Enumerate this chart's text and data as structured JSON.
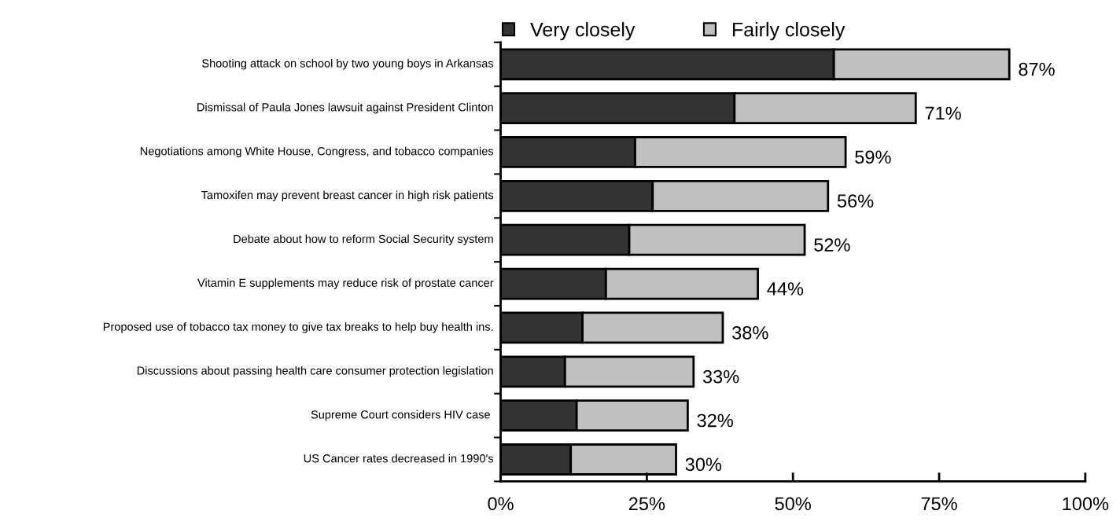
{
  "chart_data": {
    "type": "bar",
    "orientation": "horizontal",
    "stacked": true,
    "categories": [
      "Shooting attack on school by two young boys in Arkansas",
      "Dismissal of Paula Jones lawsuit against President Clinton",
      "Negotiations among White House, Congress, and tobacco companies",
      "Tamoxifen may prevent breast cancer in high risk patients",
      "Debate about how to reform Social Security system",
      "Vitamin E supplements may reduce risk of prostate cancer",
      "Proposed use of tobacco tax money to give tax breaks to help buy health ins.",
      "Discussions about passing health care consumer protection legislation",
      "Supreme Court considers HIV case ",
      "US Cancer rates decreased in 1990's"
    ],
    "series": [
      {
        "name": "Very closely",
        "color": "#333333",
        "values": [
          57,
          40,
          23,
          26,
          22,
          18,
          14,
          11,
          13,
          12
        ]
      },
      {
        "name": "Fairly closely",
        "color": "#c0c0c0",
        "values": [
          30,
          31,
          36,
          30,
          30,
          26,
          24,
          22,
          19,
          18
        ]
      }
    ],
    "totals": [
      "87%",
      "71%",
      "59%",
      "56%",
      "52%",
      "44%",
      "38%",
      "33%",
      "32%",
      "30%"
    ],
    "xlim": [
      0,
      100
    ],
    "xticks": [
      {
        "value": 0,
        "label": "0%"
      },
      {
        "value": 25,
        "label": "25%"
      },
      {
        "value": 50,
        "label": "50%"
      },
      {
        "value": 75,
        "label": "75%"
      },
      {
        "value": 100,
        "label": "100%"
      }
    ],
    "legend": "top",
    "grid": false
  }
}
